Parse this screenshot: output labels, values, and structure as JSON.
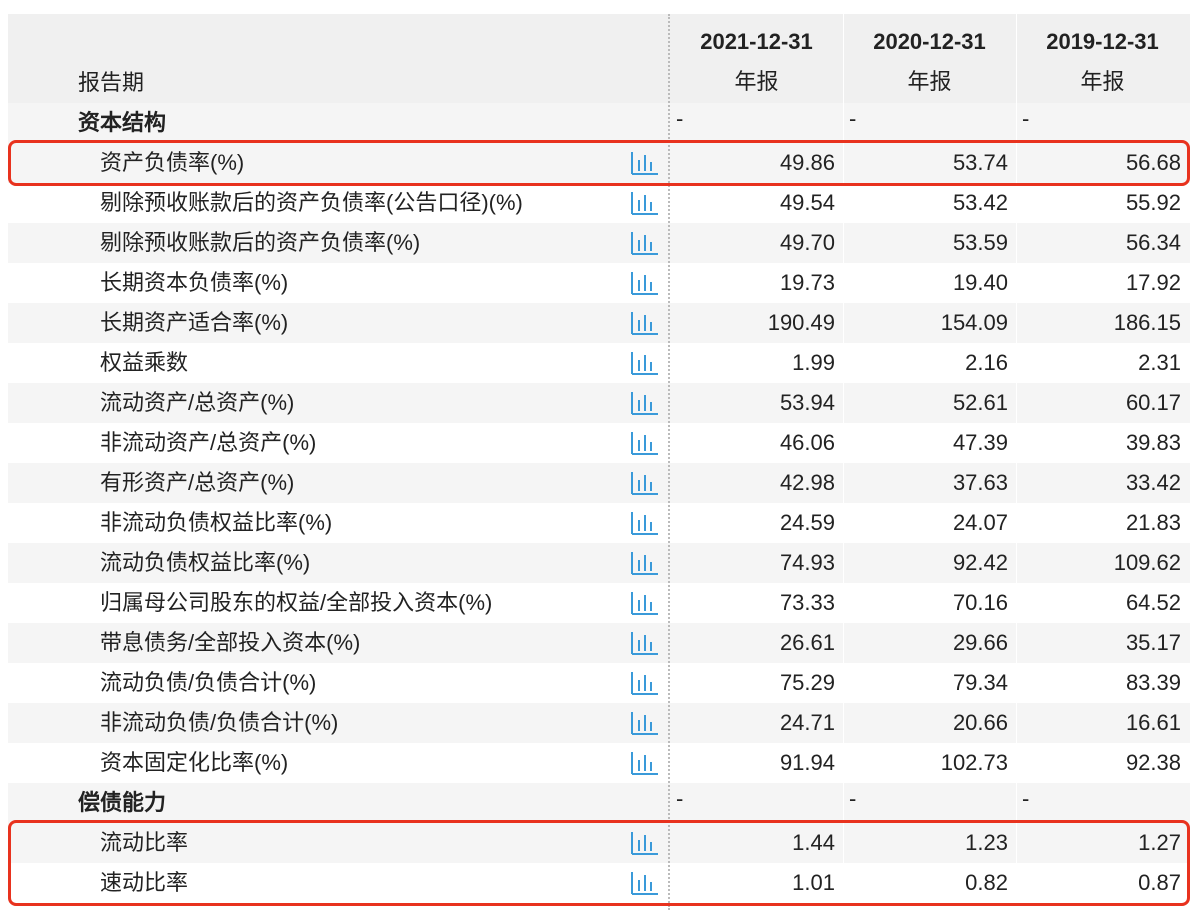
{
  "header": {
    "label": "报告期",
    "columns": [
      {
        "date": "2021-12-31",
        "kind": "年报"
      },
      {
        "date": "2020-12-31",
        "kind": "年报"
      },
      {
        "date": "2019-12-31",
        "kind": "年报"
      }
    ]
  },
  "sections": [
    {
      "title": "资本结构",
      "placeholders": [
        "-",
        "-",
        "-"
      ],
      "rows": [
        {
          "label": "资产负债率(%)",
          "values": [
            "49.86",
            "53.74",
            "56.68"
          ],
          "highlight": true
        },
        {
          "label": "剔除预收账款后的资产负债率(公告口径)(%)",
          "values": [
            "49.54",
            "53.42",
            "55.92"
          ]
        },
        {
          "label": "剔除预收账款后的资产负债率(%)",
          "values": [
            "49.70",
            "53.59",
            "56.34"
          ]
        },
        {
          "label": "长期资本负债率(%)",
          "values": [
            "19.73",
            "19.40",
            "17.92"
          ]
        },
        {
          "label": "长期资产适合率(%)",
          "values": [
            "190.49",
            "154.09",
            "186.15"
          ]
        },
        {
          "label": "权益乘数",
          "values": [
            "1.99",
            "2.16",
            "2.31"
          ]
        },
        {
          "label": "流动资产/总资产(%)",
          "values": [
            "53.94",
            "52.61",
            "60.17"
          ]
        },
        {
          "label": "非流动资产/总资产(%)",
          "values": [
            "46.06",
            "47.39",
            "39.83"
          ]
        },
        {
          "label": "有形资产/总资产(%)",
          "values": [
            "42.98",
            "37.63",
            "33.42"
          ]
        },
        {
          "label": "非流动负债权益比率(%)",
          "values": [
            "24.59",
            "24.07",
            "21.83"
          ]
        },
        {
          "label": "流动负债权益比率(%)",
          "values": [
            "74.93",
            "92.42",
            "109.62"
          ]
        },
        {
          "label": "归属母公司股东的权益/全部投入资本(%)",
          "values": [
            "73.33",
            "70.16",
            "64.52"
          ]
        },
        {
          "label": "带息债务/全部投入资本(%)",
          "values": [
            "26.61",
            "29.66",
            "35.17"
          ]
        },
        {
          "label": "流动负债/负债合计(%)",
          "values": [
            "75.29",
            "79.34",
            "83.39"
          ]
        },
        {
          "label": "非流动负债/负债合计(%)",
          "values": [
            "24.71",
            "20.66",
            "16.61"
          ]
        },
        {
          "label": "资本固定化比率(%)",
          "values": [
            "91.94",
            "102.73",
            "92.38"
          ]
        }
      ]
    },
    {
      "title": "偿债能力",
      "placeholders": [
        "-",
        "-",
        "-"
      ],
      "rows": [
        {
          "label": "流动比率",
          "values": [
            "1.44",
            "1.23",
            "1.27"
          ],
          "highlight": true
        },
        {
          "label": "速动比率",
          "values": [
            "1.01",
            "0.82",
            "0.87"
          ],
          "highlight": true
        }
      ]
    }
  ]
}
